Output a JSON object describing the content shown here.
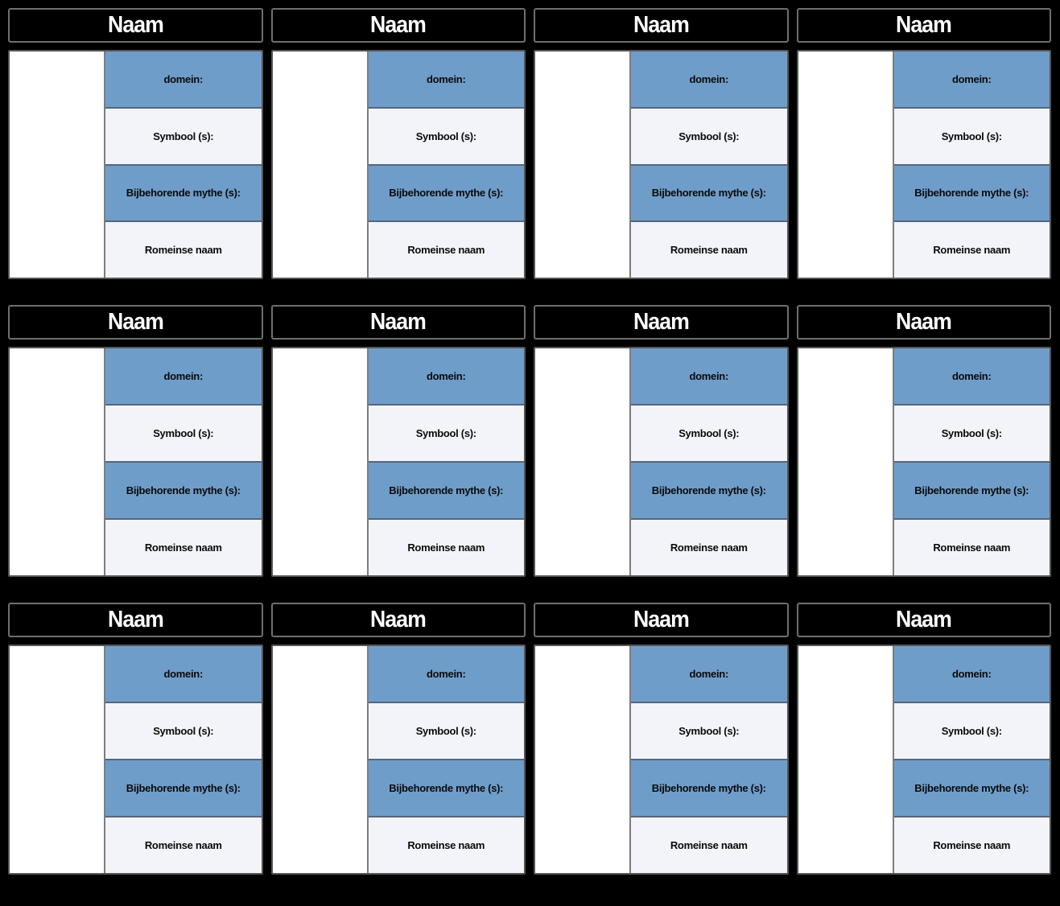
{
  "colors": {
    "page_bg": "#000000",
    "header_bg": "#000000",
    "header_text": "#ffffff",
    "header_border": "#6f6f6f",
    "body_border": "#565656",
    "cell_divider": "#7d7d7d",
    "row_divider": "#56657c",
    "row_blue": "#6f9dc9",
    "row_light": "#f2f4f9"
  },
  "cards": [
    {
      "title": "Naam",
      "fields": [
        "domein:",
        "Symbool (s):",
        "Bijbehorende mythe (s):",
        "Romeinse naam"
      ]
    },
    {
      "title": "Naam",
      "fields": [
        "domein:",
        "Symbool (s):",
        "Bijbehorende mythe (s):",
        "Romeinse naam"
      ]
    },
    {
      "title": "Naam",
      "fields": [
        "domein:",
        "Symbool (s):",
        "Bijbehorende mythe (s):",
        "Romeinse naam"
      ]
    },
    {
      "title": "Naam",
      "fields": [
        "domein:",
        "Symbool (s):",
        "Bijbehorende mythe (s):",
        "Romeinse naam"
      ]
    },
    {
      "title": "Naam",
      "fields": [
        "domein:",
        "Symbool (s):",
        "Bijbehorende mythe (s):",
        "Romeinse naam"
      ]
    },
    {
      "title": "Naam",
      "fields": [
        "domein:",
        "Symbool (s):",
        "Bijbehorende mythe (s):",
        "Romeinse naam"
      ]
    },
    {
      "title": "Naam",
      "fields": [
        "domein:",
        "Symbool (s):",
        "Bijbehorende mythe (s):",
        "Romeinse naam"
      ]
    },
    {
      "title": "Naam",
      "fields": [
        "domein:",
        "Symbool (s):",
        "Bijbehorende mythe (s):",
        "Romeinse naam"
      ]
    },
    {
      "title": "Naam",
      "fields": [
        "domein:",
        "Symbool (s):",
        "Bijbehorende mythe (s):",
        "Romeinse naam"
      ]
    },
    {
      "title": "Naam",
      "fields": [
        "domein:",
        "Symbool (s):",
        "Bijbehorende mythe (s):",
        "Romeinse naam"
      ]
    },
    {
      "title": "Naam",
      "fields": [
        "domein:",
        "Symbool (s):",
        "Bijbehorende mythe (s):",
        "Romeinse naam"
      ]
    },
    {
      "title": "Naam",
      "fields": [
        "domein:",
        "Symbool (s):",
        "Bijbehorende mythe (s):",
        "Romeinse naam"
      ]
    }
  ]
}
